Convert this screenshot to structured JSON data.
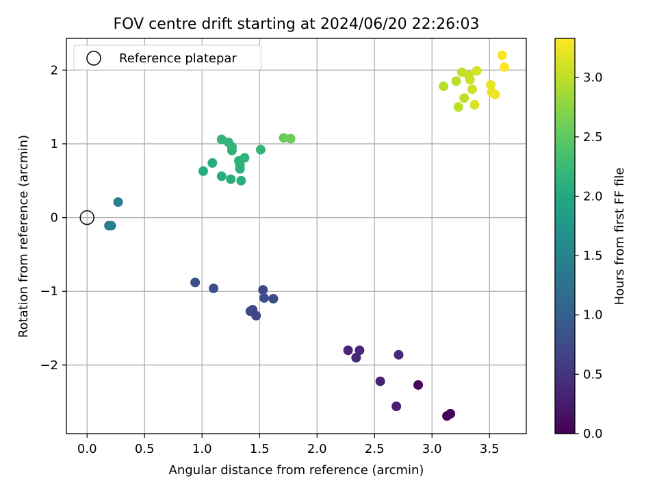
{
  "chart_data": {
    "type": "scatter",
    "title": "FOV centre drift starting at 2024/06/20 22:26:03",
    "xlabel": "Angular distance from reference (arcmin)",
    "ylabel": "Rotation from reference (arcmin)",
    "xlim": [
      -0.18,
      3.82
    ],
    "ylim": [
      -2.93,
      2.43
    ],
    "xticks": [
      0.0,
      0.5,
      1.0,
      1.5,
      2.0,
      2.5,
      3.0,
      3.5
    ],
    "xtick_labels": [
      "0.0",
      "0.5",
      "1.0",
      "1.5",
      "2.0",
      "2.5",
      "3.0",
      "3.5"
    ],
    "yticks": [
      -2,
      -1,
      0,
      1,
      2
    ],
    "ytick_labels": [
      "−2",
      "−1",
      "0",
      "1",
      "2"
    ],
    "grid": true,
    "legend": {
      "placement": "upper-left",
      "entries": [
        "Reference platepar"
      ]
    },
    "colorbar": {
      "label": "Hours from first FF file",
      "colormap": "viridis",
      "range": [
        0.0,
        3.33
      ],
      "ticks": [
        0.0,
        0.5,
        1.0,
        1.5,
        2.0,
        2.5,
        3.0
      ],
      "tick_labels": [
        "0.0",
        "0.5",
        "1.0",
        "1.5",
        "2.0",
        "2.5",
        "3.0"
      ]
    },
    "reference_point": {
      "name": "Reference platepar",
      "x": 0.0,
      "y": 0.0
    },
    "points": [
      {
        "x": 3.13,
        "y": -2.69,
        "c": 0.02
      },
      {
        "x": 3.16,
        "y": -2.66,
        "c": 0.04
      },
      {
        "x": 2.88,
        "y": -2.27,
        "c": 0.06
      },
      {
        "x": 2.69,
        "y": -2.56,
        "c": 0.3
      },
      {
        "x": 2.55,
        "y": -2.22,
        "c": 0.32
      },
      {
        "x": 2.27,
        "y": -1.8,
        "c": 0.34
      },
      {
        "x": 2.34,
        "y": -1.9,
        "c": 0.36
      },
      {
        "x": 2.37,
        "y": -1.8,
        "c": 0.38
      },
      {
        "x": 2.71,
        "y": -1.86,
        "c": 0.4
      },
      {
        "x": 1.47,
        "y": -1.33,
        "c": 0.68
      },
      {
        "x": 1.42,
        "y": -1.27,
        "c": 0.7
      },
      {
        "x": 1.44,
        "y": -1.25,
        "c": 0.72
      },
      {
        "x": 1.53,
        "y": -0.98,
        "c": 0.74
      },
      {
        "x": 1.54,
        "y": -1.09,
        "c": 0.76
      },
      {
        "x": 1.62,
        "y": -1.1,
        "c": 0.78
      },
      {
        "x": 1.1,
        "y": -0.96,
        "c": 0.8
      },
      {
        "x": 0.94,
        "y": -0.88,
        "c": 0.82
      },
      {
        "x": 0.19,
        "y": -0.11,
        "c": 1.38
      },
      {
        "x": 0.21,
        "y": -0.11,
        "c": 1.4
      },
      {
        "x": 0.27,
        "y": 0.21,
        "c": 1.42
      },
      {
        "x": 1.01,
        "y": 0.63,
        "c": 2.05
      },
      {
        "x": 1.09,
        "y": 0.74,
        "c": 2.07
      },
      {
        "x": 1.17,
        "y": 0.56,
        "c": 2.08
      },
      {
        "x": 1.25,
        "y": 0.52,
        "c": 2.09
      },
      {
        "x": 1.34,
        "y": 0.5,
        "c": 2.1
      },
      {
        "x": 1.33,
        "y": 0.66,
        "c": 2.11
      },
      {
        "x": 1.33,
        "y": 0.71,
        "c": 2.12
      },
      {
        "x": 1.32,
        "y": 0.77,
        "c": 2.13
      },
      {
        "x": 1.37,
        "y": 0.81,
        "c": 2.14
      },
      {
        "x": 1.26,
        "y": 0.91,
        "c": 2.15
      },
      {
        "x": 1.26,
        "y": 0.96,
        "c": 2.16
      },
      {
        "x": 1.23,
        "y": 1.02,
        "c": 2.17
      },
      {
        "x": 1.17,
        "y": 1.06,
        "c": 2.18
      },
      {
        "x": 1.51,
        "y": 0.92,
        "c": 2.19
      },
      {
        "x": 1.71,
        "y": 1.08,
        "c": 2.55
      },
      {
        "x": 1.77,
        "y": 1.07,
        "c": 2.57
      },
      {
        "x": 3.1,
        "y": 1.78,
        "c": 2.95
      },
      {
        "x": 3.21,
        "y": 1.85,
        "c": 2.97
      },
      {
        "x": 3.23,
        "y": 1.5,
        "c": 2.99
      },
      {
        "x": 3.28,
        "y": 1.62,
        "c": 3.01
      },
      {
        "x": 3.26,
        "y": 1.97,
        "c": 3.03
      },
      {
        "x": 3.32,
        "y": 1.93,
        "c": 3.05
      },
      {
        "x": 3.33,
        "y": 1.87,
        "c": 3.07
      },
      {
        "x": 3.35,
        "y": 1.74,
        "c": 3.09
      },
      {
        "x": 3.39,
        "y": 1.99,
        "c": 3.11
      },
      {
        "x": 3.37,
        "y": 1.53,
        "c": 3.15
      },
      {
        "x": 3.51,
        "y": 1.8,
        "c": 3.21
      },
      {
        "x": 3.52,
        "y": 1.7,
        "c": 3.23
      },
      {
        "x": 3.55,
        "y": 1.67,
        "c": 3.26
      },
      {
        "x": 3.61,
        "y": 2.2,
        "c": 3.3
      },
      {
        "x": 3.63,
        "y": 2.04,
        "c": 3.32
      }
    ]
  }
}
